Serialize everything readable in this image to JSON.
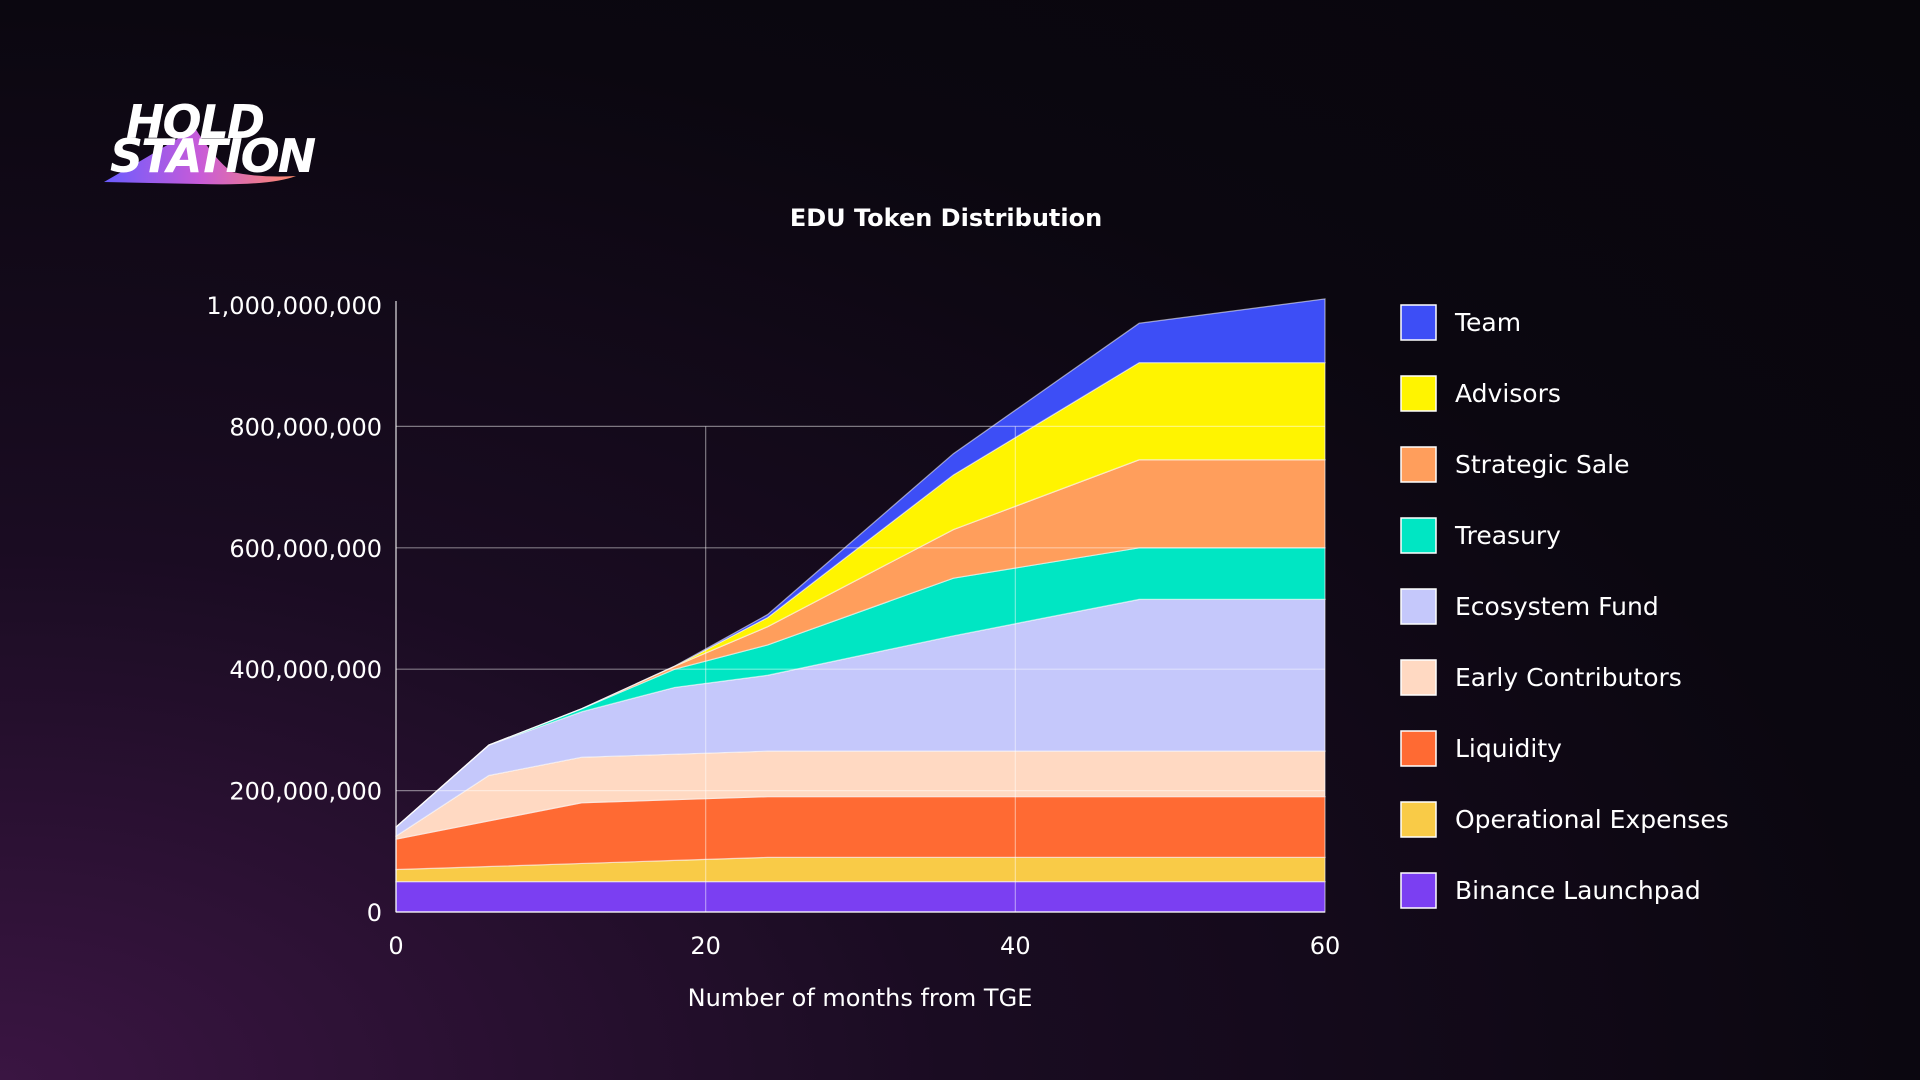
{
  "brand": {
    "line1": "HOLD",
    "line2": "STATION",
    "gradient": [
      "#6a5cff",
      "#c85bd8",
      "#ff8a6a"
    ]
  },
  "chart_data": {
    "type": "area",
    "stacked": true,
    "title": "EDU Token Distribution",
    "xlabel": "Number of months from TGE",
    "ylabel": "",
    "xlim": [
      0,
      60
    ],
    "ylim": [
      0,
      1000000000
    ],
    "x_ticks": [
      0,
      20,
      40,
      60
    ],
    "y_ticks": [
      0,
      200000000,
      400000000,
      600000000,
      800000000,
      1000000000
    ],
    "y_tick_labels": [
      "0",
      "200,000,000",
      "400,000,000",
      "600,000,000",
      "800,000,000",
      "1,000,000,000"
    ],
    "grid": true,
    "legend_position": "right",
    "x": [
      0,
      6,
      12,
      18,
      24,
      36,
      48,
      60
    ],
    "series": [
      {
        "name": "Binance Launchpad",
        "color": "#7b3ff2",
        "values": [
          50000000,
          50000000,
          50000000,
          50000000,
          50000000,
          50000000,
          50000000,
          50000000
        ]
      },
      {
        "name": "Operational Expenses",
        "color": "#f9cb47",
        "values": [
          20000000,
          25000000,
          30000000,
          35000000,
          40000000,
          40000000,
          40000000,
          40000000
        ]
      },
      {
        "name": "Liquidity",
        "color": "#ff6a33",
        "values": [
          50000000,
          75000000,
          100000000,
          100000000,
          100000000,
          100000000,
          100000000,
          100000000
        ]
      },
      {
        "name": "Early Contributors",
        "color": "#ffd9c2",
        "values": [
          5000000,
          75000000,
          75000000,
          75000000,
          75000000,
          75000000,
          75000000,
          75000000
        ]
      },
      {
        "name": "Ecosystem Fund",
        "color": "#c5c8fb",
        "values": [
          15000000,
          50000000,
          75000000,
          110000000,
          125000000,
          190000000,
          250000000,
          250000000
        ]
      },
      {
        "name": "Treasury",
        "color": "#00e6c3",
        "values": [
          0,
          0,
          5000000,
          30000000,
          50000000,
          95000000,
          85000000,
          85000000
        ]
      },
      {
        "name": "Strategic Sale",
        "color": "#ff9e5c",
        "values": [
          0,
          0,
          0,
          5000000,
          30000000,
          80000000,
          145000000,
          145000000
        ]
      },
      {
        "name": "Advisors",
        "color": "#fff400",
        "values": [
          0,
          0,
          0,
          0,
          15000000,
          90000000,
          160000000,
          160000000
        ]
      },
      {
        "name": "Team",
        "color": "#3d4ef6",
        "values": [
          0,
          0,
          0,
          0,
          5000000,
          35000000,
          65000000,
          105000000
        ]
      }
    ],
    "legend_order": [
      "Team",
      "Advisors",
      "Strategic Sale",
      "Treasury",
      "Ecosystem Fund",
      "Early Contributors",
      "Liquidity",
      "Operational Expenses",
      "Binance Launchpad"
    ]
  }
}
